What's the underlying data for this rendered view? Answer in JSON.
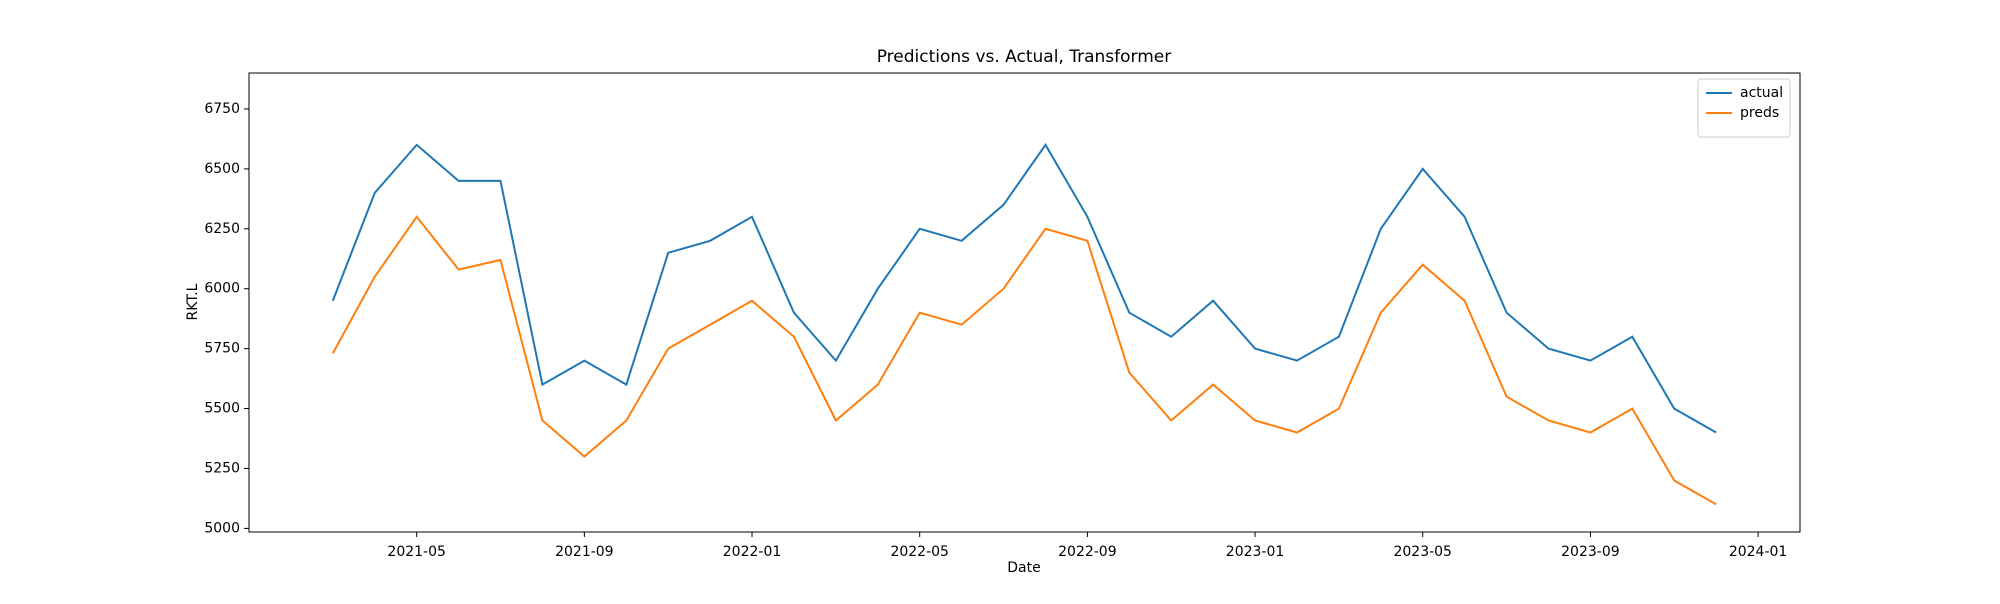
{
  "chart_data": {
    "type": "line",
    "title": "Predictions vs. Actual, Transformer",
    "xlabel": "Date",
    "ylabel": "RKT.L",
    "x": [
      "2021-03",
      "2021-04",
      "2021-05",
      "2021-06",
      "2021-07",
      "2021-08",
      "2021-09",
      "2021-10",
      "2021-11",
      "2021-12",
      "2022-01",
      "2022-02",
      "2022-03",
      "2022-04",
      "2022-05",
      "2022-06",
      "2022-07",
      "2022-08",
      "2022-09",
      "2022-10",
      "2022-11",
      "2022-12",
      "2023-01",
      "2023-02",
      "2023-03",
      "2023-04",
      "2023-05",
      "2023-06",
      "2023-07",
      "2023-08",
      "2023-09",
      "2023-10",
      "2023-11",
      "2023-12"
    ],
    "series": [
      {
        "name": "actual",
        "color": "#1f77b4",
        "values": [
          5950,
          6400,
          6600,
          6450,
          6450,
          5600,
          5700,
          5600,
          6150,
          6200,
          6300,
          5900,
          5700,
          6000,
          6250,
          6200,
          6350,
          6600,
          6300,
          5900,
          5800,
          5950,
          5750,
          5700,
          5800,
          6250,
          6500,
          6300,
          5900,
          5750,
          5700,
          5800,
          5500,
          5400
        ]
      },
      {
        "name": "preds",
        "color": "#ff7f0e",
        "values": [
          5730,
          6050,
          6300,
          6080,
          6120,
          5450,
          5300,
          5450,
          5750,
          5850,
          5950,
          5800,
          5450,
          5600,
          5900,
          5850,
          6000,
          6250,
          6200,
          5650,
          5450,
          5600,
          5450,
          5400,
          5500,
          5900,
          6100,
          5950,
          5550,
          5450,
          5400,
          5500,
          5200,
          5100
        ]
      }
    ],
    "xlim": [
      "2021-01",
      "2024-02"
    ],
    "xticks": [
      "2021-05",
      "2021-09",
      "2022-01",
      "2022-05",
      "2022-09",
      "2023-01",
      "2023-05",
      "2023-09",
      "2024-01"
    ],
    "ylim": [
      4985,
      6900
    ],
    "yticks": [
      5000,
      5250,
      5500,
      5750,
      6000,
      6250,
      6500,
      6750
    ],
    "legend": "upper right"
  }
}
